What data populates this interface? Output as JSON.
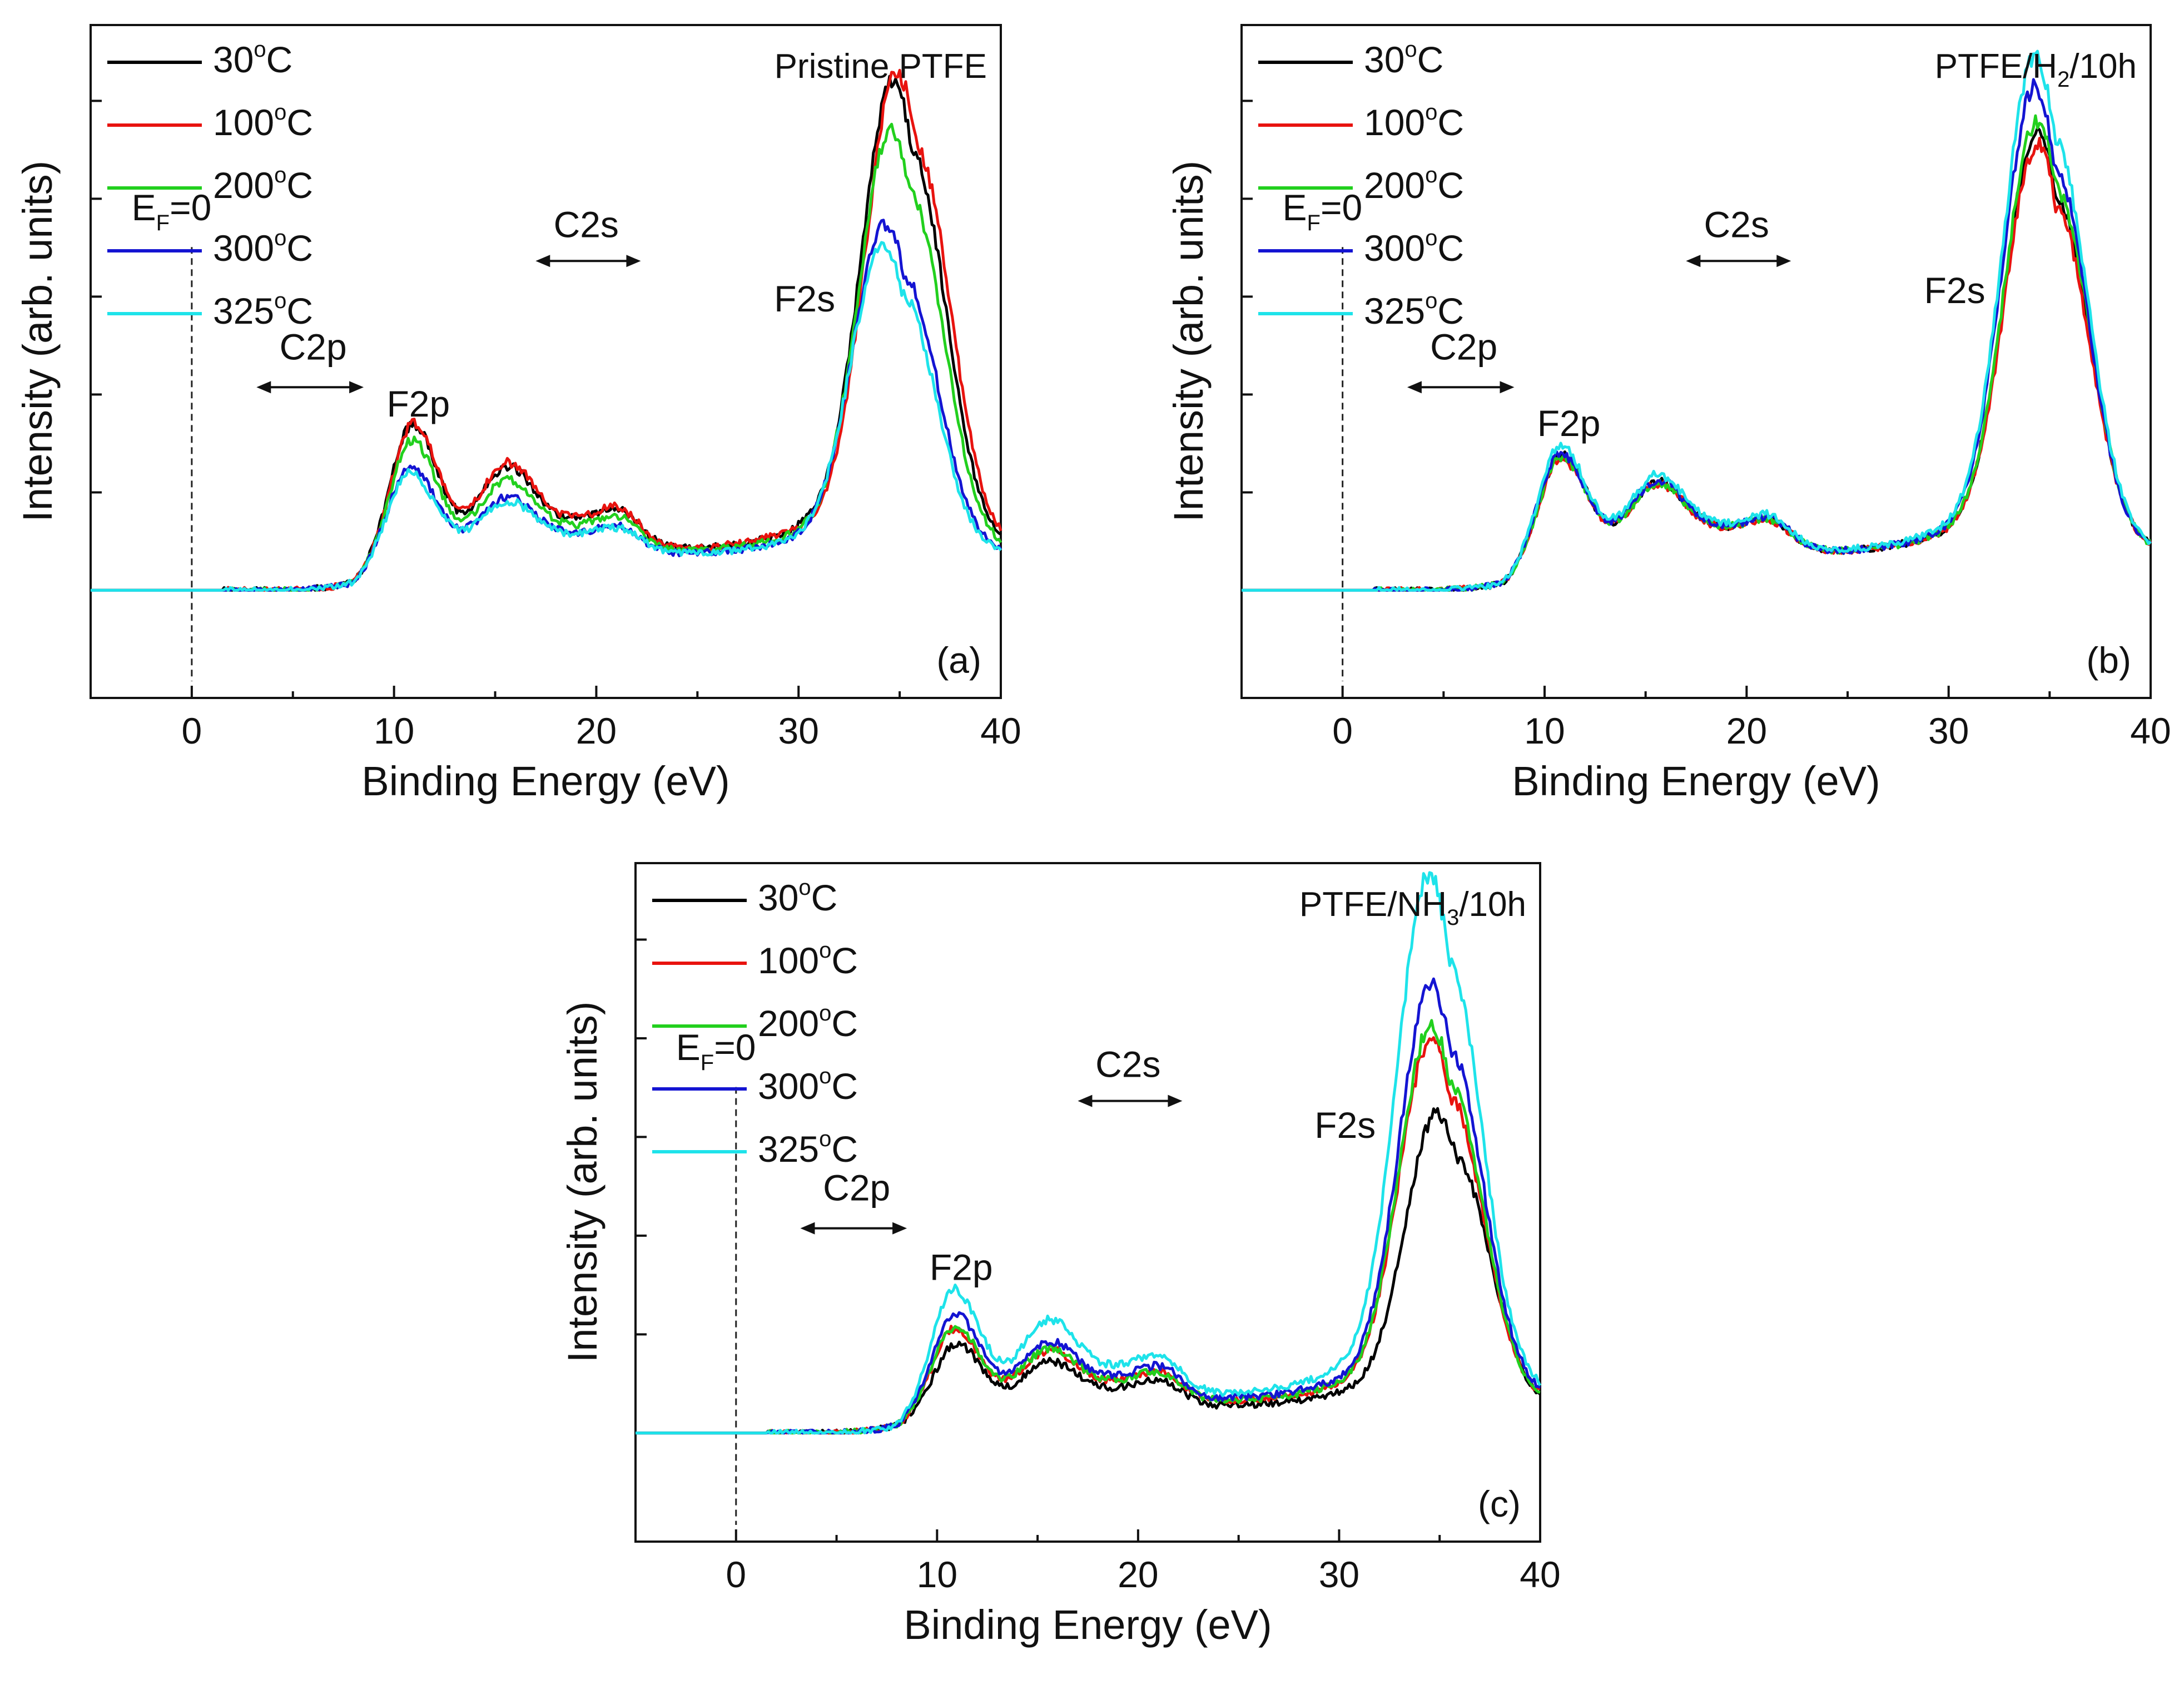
{
  "figure": {
    "background": "#ffffff"
  },
  "chart_data": [
    {
      "type": "line",
      "panel_tag": "(a)",
      "title": "Pristine PTFE",
      "title_parts": {
        "pre": "Pristine PTFE",
        "sub": "",
        "post": ""
      },
      "xlabel": "Binding Energy (eV)",
      "ylabel": "Intensity (arb. units)",
      "xlim": [
        -5,
        40
      ],
      "ylim": [
        0,
        1.1
      ],
      "x_ticks": [
        "0",
        "10",
        "20",
        "30",
        "40"
      ],
      "legend_placement": "top-left",
      "annotations": {
        "ef": {
          "pre": "E",
          "sub": "F",
          "post": "=0"
        },
        "f2p": "F2p",
        "c2s": "C2s",
        "c2p": "C2p",
        "f2s": "F2s"
      },
      "series": [
        {
          "name": "30",
          "unit": "C",
          "deg": "o",
          "color": "#000000",
          "params": {
            "f2s_amp": 0.98,
            "f2p_amp": 0.285,
            "shoulder_amp": 0.195,
            "c2s_amp": 0.125,
            "valley": 0.065,
            "shift": 0.1
          }
        },
        {
          "name": "100",
          "unit": "C",
          "deg": "o",
          "color": "#e8130f",
          "params": {
            "f2s_amp": 1.0,
            "f2p_amp": 0.285,
            "shoulder_amp": 0.205,
            "c2s_amp": 0.128,
            "valley": 0.065,
            "shift": 0.3
          }
        },
        {
          "name": "200",
          "unit": "C",
          "deg": "o",
          "color": "#22d01e",
          "params": {
            "f2s_amp": 0.885,
            "f2p_amp": 0.255,
            "shoulder_amp": 0.17,
            "c2s_amp": 0.11,
            "valley": 0.06,
            "shift": 0.0
          }
        },
        {
          "name": "300",
          "unit": "C",
          "deg": "o",
          "color": "#1414d2",
          "params": {
            "f2s_amp": 0.69,
            "f2p_amp": 0.205,
            "shoulder_amp": 0.135,
            "c2s_amp": 0.085,
            "valley": 0.055,
            "shift": -0.3
          }
        },
        {
          "name": "325",
          "unit": "C",
          "deg": "o",
          "color": "#1ee3ea",
          "params": {
            "f2s_amp": 0.645,
            "f2p_amp": 0.19,
            "shoulder_amp": 0.125,
            "c2s_amp": 0.08,
            "valley": 0.055,
            "shift": -0.4
          }
        }
      ]
    },
    {
      "type": "line",
      "panel_tag": "(b)",
      "title": "PTFE/H2/10h",
      "title_parts": {
        "pre": "PTFE/H",
        "sub": "2",
        "post": "/10h"
      },
      "xlabel": "Binding Energy (eV)",
      "ylabel": "Intensity (arb. units)",
      "xlim": [
        -5,
        40
      ],
      "ylim": [
        0,
        1.1
      ],
      "x_ticks": [
        "0",
        "10",
        "20",
        "30",
        "40"
      ],
      "legend_placement": "top-left",
      "annotations": {
        "ef": {
          "pre": "E",
          "sub": "F",
          "post": "=0"
        },
        "f2p": "F2p",
        "c2s": "C2s",
        "c2p": "C2p",
        "f2s": "F2s"
      },
      "series": [
        {
          "name": "30",
          "unit": "C",
          "deg": "o",
          "color": "#000000",
          "params": {
            "f2s_amp": 0.88,
            "f2p_amp": 0.225,
            "shoulder_amp": 0.165,
            "c2s_amp": 0.1,
            "valley": 0.06,
            "shift": -0.2
          }
        },
        {
          "name": "100",
          "unit": "C",
          "deg": "o",
          "color": "#e8130f",
          "params": {
            "f2s_amp": 0.85,
            "f2p_amp": 0.215,
            "shoulder_amp": 0.16,
            "c2s_amp": 0.098,
            "valley": 0.06,
            "shift": -0.2
          }
        },
        {
          "name": "200",
          "unit": "C",
          "deg": "o",
          "color": "#22d01e",
          "params": {
            "f2s_amp": 0.9,
            "f2p_amp": 0.22,
            "shoulder_amp": 0.16,
            "c2s_amp": 0.1,
            "valley": 0.06,
            "shift": -0.2
          }
        },
        {
          "name": "300",
          "unit": "C",
          "deg": "o",
          "color": "#1414d2",
          "params": {
            "f2s_amp": 0.97,
            "f2p_amp": 0.23,
            "shoulder_amp": 0.17,
            "c2s_amp": 0.105,
            "valley": 0.06,
            "shift": -0.3
          }
        },
        {
          "name": "325",
          "unit": "C",
          "deg": "o",
          "color": "#1ee3ea",
          "params": {
            "f2s_amp": 1.03,
            "f2p_amp": 0.245,
            "shoulder_amp": 0.18,
            "c2s_amp": 0.11,
            "valley": 0.062,
            "shift": -0.3
          }
        }
      ]
    },
    {
      "type": "line",
      "panel_tag": "(c)",
      "title": "PTFE/NH3/10h",
      "title_parts": {
        "pre": "PTFE/NH",
        "sub": "3",
        "post": "/10h"
      },
      "xlabel": "Binding Energy (eV)",
      "ylabel": "Intensity (arb. units)",
      "xlim": [
        -5,
        40
      ],
      "ylim": [
        0,
        1.1
      ],
      "x_ticks": [
        "0",
        "10",
        "20",
        "30",
        "40"
      ],
      "legend_placement": "top-left",
      "annotations": {
        "ef": {
          "pre": "E",
          "sub": "F",
          "post": "=0"
        },
        "f2p": "F2p",
        "c2s": "C2s",
        "c2p": "C2p",
        "f2s": "F2s"
      },
      "series": [
        {
          "name": "30",
          "unit": "C",
          "deg": "o",
          "color": "#000000",
          "params": {
            "f2s_amp": 0.61,
            "f2p_amp": 0.14,
            "shoulder_amp": 0.105,
            "c2s_amp": 0.08,
            "valley": 0.035,
            "shift": 0.3
          }
        },
        {
          "name": "100",
          "unit": "C",
          "deg": "o",
          "color": "#e8130f",
          "params": {
            "f2s_amp": 0.75,
            "f2p_amp": 0.165,
            "shoulder_amp": 0.12,
            "c2s_amp": 0.09,
            "valley": 0.045,
            "shift": 0.0
          }
        },
        {
          "name": "200",
          "unit": "C",
          "deg": "o",
          "color": "#22d01e",
          "params": {
            "f2s_amp": 0.78,
            "f2p_amp": 0.17,
            "shoulder_amp": 0.125,
            "c2s_amp": 0.09,
            "valley": 0.045,
            "shift": 0.0
          }
        },
        {
          "name": "300",
          "unit": "C",
          "deg": "o",
          "color": "#1414d2",
          "params": {
            "f2s_amp": 0.86,
            "f2p_amp": 0.195,
            "shoulder_amp": 0.135,
            "c2s_amp": 0.1,
            "valley": 0.05,
            "shift": 0.0
          }
        },
        {
          "name": "325",
          "unit": "C",
          "deg": "o",
          "color": "#1ee3ea",
          "params": {
            "f2s_amp": 1.08,
            "f2p_amp": 0.24,
            "shoulder_amp": 0.175,
            "c2s_amp": 0.12,
            "valley": 0.06,
            "shift": -0.1
          }
        }
      ]
    }
  ]
}
